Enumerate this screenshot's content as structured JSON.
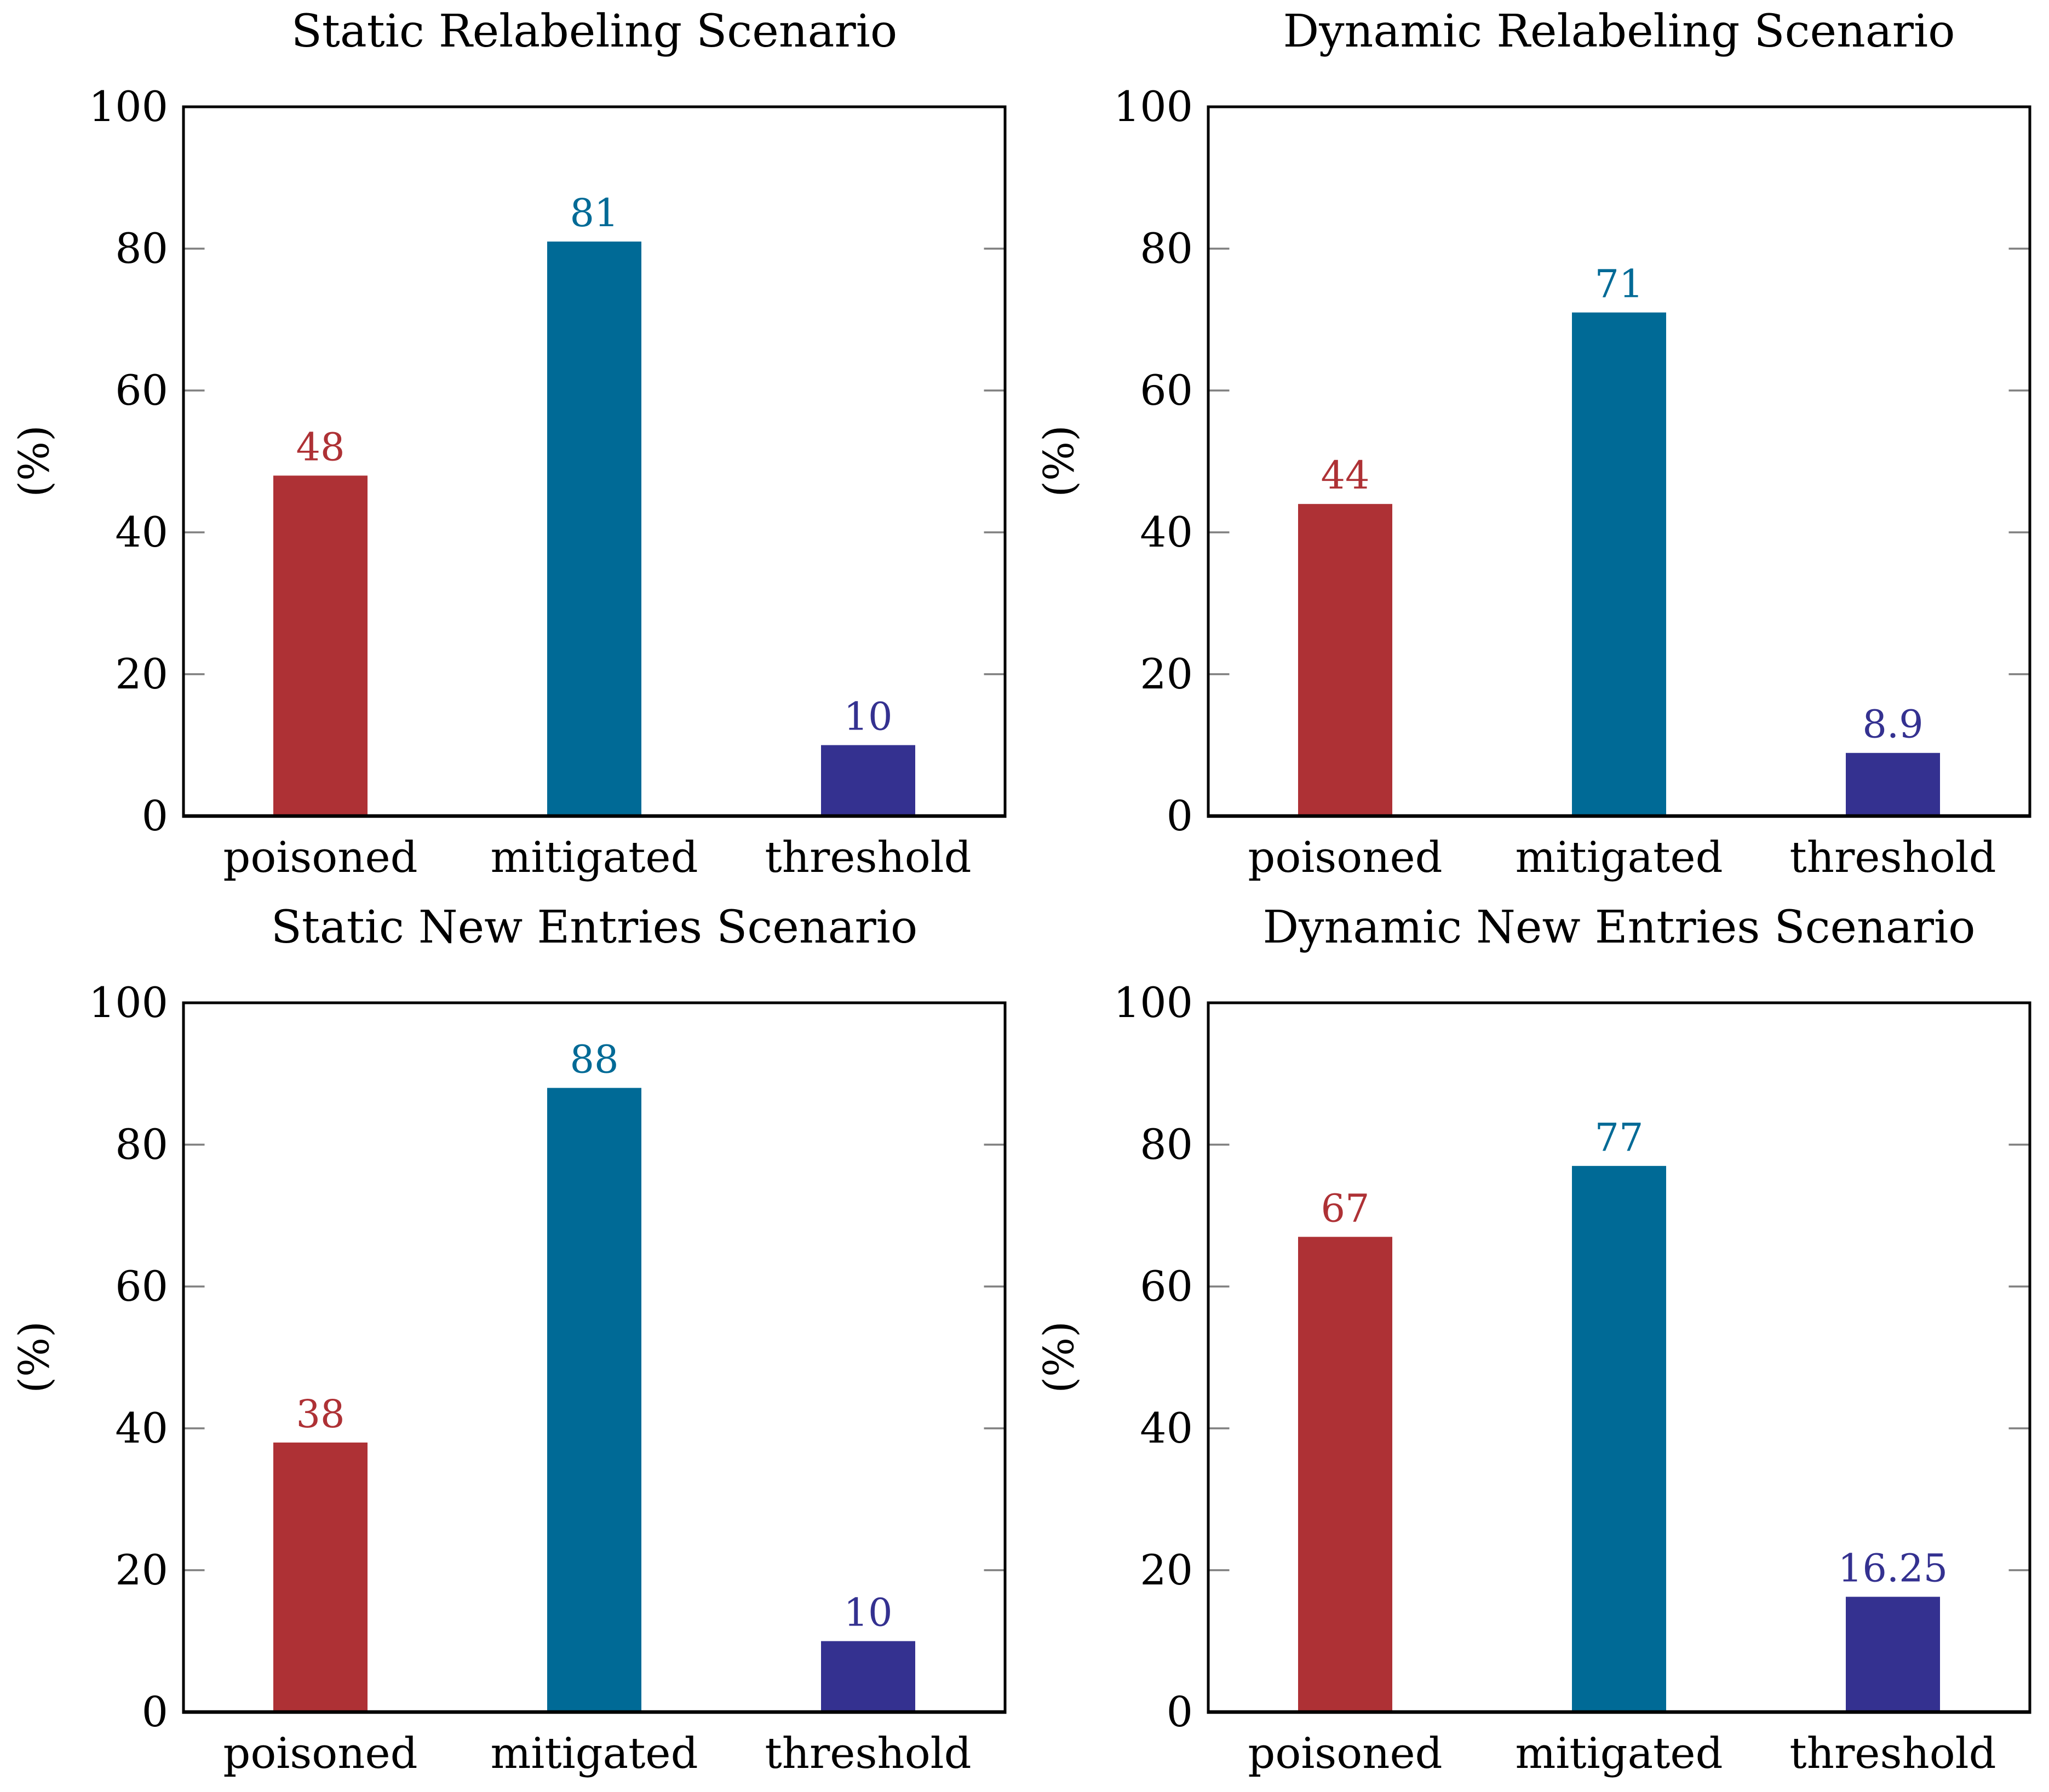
{
  "colors": {
    "poisoned_bar": "#AE3135",
    "mitigated_bar": "#006A96",
    "threshold_bar": "#343190",
    "axis_frame": "#000000",
    "tick_mark": "#7F7F7F",
    "background": "#FFFFFF"
  },
  "chart_data": [
    {
      "type": "bar",
      "title": "Static Relabeling Scenario",
      "categories": [
        "poisoned",
        "mitigated",
        "threshold"
      ],
      "values": [
        48,
        81,
        10
      ],
      "value_labels": [
        "48",
        "81",
        "10"
      ],
      "bar_colors": [
        "#AE3135",
        "#006A96",
        "#343190"
      ],
      "value_label_colors": [
        "#AE3135",
        "#006A96",
        "#343190"
      ],
      "xlabel": "",
      "ylabel": "(%)",
      "ylim": [
        0,
        100
      ],
      "yticks": [
        0,
        20,
        40,
        60,
        80,
        100
      ],
      "grid": false,
      "legend": false
    },
    {
      "type": "bar",
      "title": "Dynamic Relabeling Scenario",
      "categories": [
        "poisoned",
        "mitigated",
        "threshold"
      ],
      "values": [
        44,
        71,
        8.9
      ],
      "value_labels": [
        "44",
        "71",
        "8.9"
      ],
      "bar_colors": [
        "#AE3135",
        "#006A96",
        "#343190"
      ],
      "value_label_colors": [
        "#AE3135",
        "#006A96",
        "#343190"
      ],
      "xlabel": "",
      "ylabel": "(%)",
      "ylim": [
        0,
        100
      ],
      "yticks": [
        0,
        20,
        40,
        60,
        80,
        100
      ],
      "grid": false,
      "legend": false
    },
    {
      "type": "bar",
      "title": "Static New Entries Scenario",
      "categories": [
        "poisoned",
        "mitigated",
        "threshold"
      ],
      "values": [
        38,
        88,
        10
      ],
      "value_labels": [
        "38",
        "88",
        "10"
      ],
      "bar_colors": [
        "#AE3135",
        "#006A96",
        "#343190"
      ],
      "value_label_colors": [
        "#AE3135",
        "#006A96",
        "#343190"
      ],
      "xlabel": "",
      "ylabel": "(%)",
      "ylim": [
        0,
        100
      ],
      "yticks": [
        0,
        20,
        40,
        60,
        80,
        100
      ],
      "grid": false,
      "legend": false
    },
    {
      "type": "bar",
      "title": "Dynamic New Entries Scenario",
      "categories": [
        "poisoned",
        "mitigated",
        "threshold"
      ],
      "values": [
        67,
        77,
        16.25
      ],
      "value_labels": [
        "67",
        "77",
        "16.25"
      ],
      "bar_colors": [
        "#AE3135",
        "#006A96",
        "#343190"
      ],
      "value_label_colors": [
        "#AE3135",
        "#006A96",
        "#343190"
      ],
      "xlabel": "",
      "ylabel": "(%)",
      "ylim": [
        0,
        100
      ],
      "yticks": [
        0,
        20,
        40,
        60,
        80,
        100
      ],
      "grid": false,
      "legend": false
    }
  ]
}
